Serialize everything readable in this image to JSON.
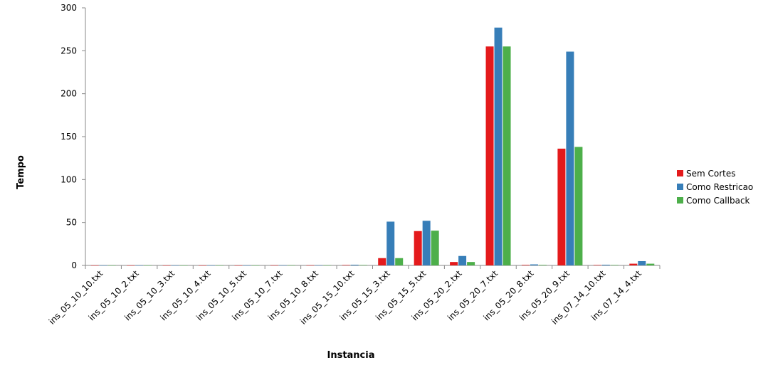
{
  "chart_data": {
    "type": "bar",
    "xlabel": "Instancia",
    "ylabel": "Tempo",
    "ylim": [
      0,
      300
    ],
    "yticks": [
      0,
      50,
      100,
      150,
      200,
      250,
      300
    ],
    "grid": false,
    "legend_position": "right",
    "categories": [
      "ins_05_10_10.txt",
      "ins_05_10_2.txt",
      "ins_05_10_3.txt",
      "ins_05_10_4.txt",
      "ins_05_10_5.txt",
      "ins_05_10_7.txt",
      "ins_05_10_8.txt",
      "ins_05_15_10.txt",
      "ins_05_15_3.txt",
      "ins_05_15_5.txt",
      "ins_05_20_2.txt",
      "ins_05_20_7.txt",
      "ins_05_20_8.txt",
      "ins_05_20_9.txt",
      "ins_07_14_10.txt",
      "ins_07_14_4.txt"
    ],
    "series": [
      {
        "name": "Sem Cortes",
        "color": "#e41a1c",
        "values": [
          0.1,
          0.1,
          0.1,
          0.1,
          0.1,
          0.2,
          0.2,
          0.5,
          8.5,
          40,
          4,
          255,
          0.6,
          136,
          0.5,
          2
        ]
      },
      {
        "name": "Como Restricao",
        "color": "#377eb8",
        "values": [
          0.1,
          0.1,
          0.1,
          0.1,
          0.1,
          0.2,
          0.2,
          0.8,
          51,
          52,
          11,
          277,
          1.2,
          249,
          0.8,
          5
        ]
      },
      {
        "name": "Como Callback",
        "color": "#4daf4a",
        "values": [
          0.1,
          0.1,
          0.1,
          0.1,
          0.1,
          0.2,
          0.2,
          0.5,
          8.5,
          40.5,
          4,
          255,
          0.6,
          138,
          0.5,
          2
        ]
      }
    ]
  }
}
